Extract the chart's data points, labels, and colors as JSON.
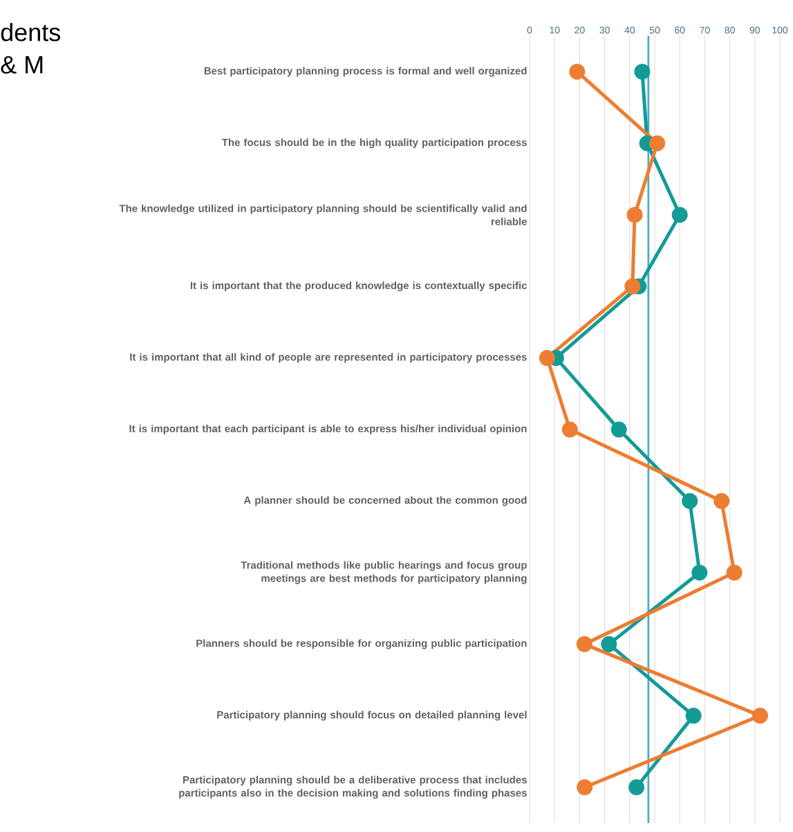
{
  "chart_data": {
    "type": "line",
    "orientation": "horizontal",
    "categories": [
      "Best participatory planning process is formal and well organized",
      "The focus should be in the high quality participation process",
      "The knowledge utilized in participatory planning should be scientifically valid and reliable",
      "It is important that the produced knowledge is contextually specific",
      "It is important that all kind of people are represented in  participatory processes",
      "It is important that each participant is able to express his/her individual opinion",
      "A planner should be concerned about the common good",
      "Traditional methods like public hearings and focus group meetings are best methods for participatory planning",
      "Planners should be responsible for organizing public participation",
      "Participatory planning should focus on detailed planning level",
      "Participatory planning should be a deliberative process that includes participants also in the decision making and solutions finding phases"
    ],
    "series": [
      {
        "color": "#139b96",
        "values": [
          45,
          47,
          60,
          43.6,
          10.6,
          35.7,
          64,
          67.9,
          31.7,
          65.5,
          42.7
        ]
      },
      {
        "color": "#ed7d31",
        "values": [
          19,
          51,
          42,
          41.1,
          7,
          16.1,
          76.7,
          81.8,
          21.9,
          92.1,
          22
        ]
      }
    ],
    "xlim": [
      0,
      100
    ],
    "xticks": [
      0,
      10,
      20,
      30,
      40,
      50,
      60,
      70,
      80,
      90,
      100
    ],
    "grid": "x",
    "marker": "circle",
    "line_style": "solid",
    "ref_lines": [
      {
        "axis": "x",
        "value": 47.5,
        "color": "#4bacc6"
      }
    ],
    "annotations": [
      "dents",
      "& M"
    ]
  }
}
